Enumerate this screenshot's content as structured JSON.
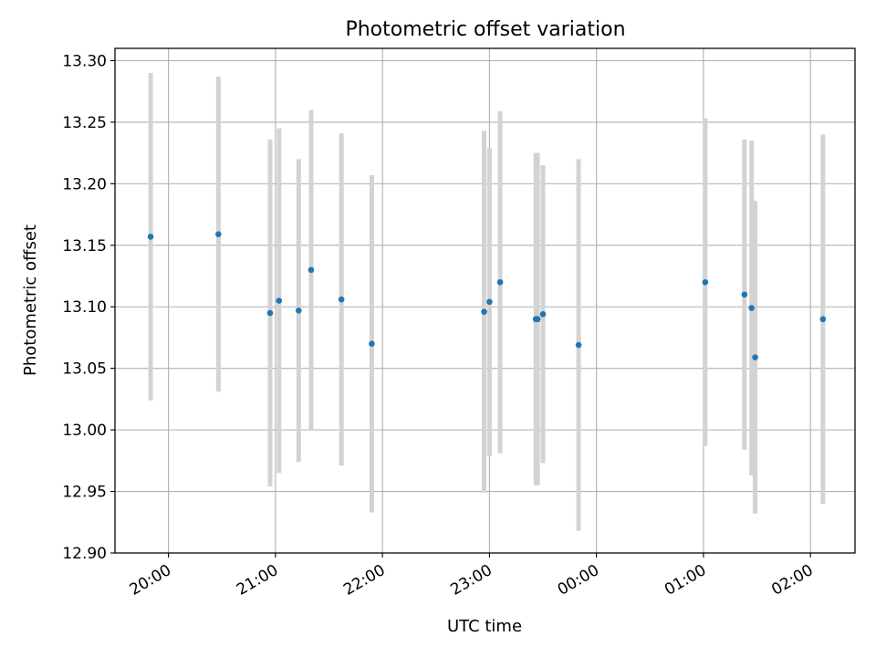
{
  "chart_data": {
    "type": "scatter",
    "title": "Photometric offset variation",
    "xlabel": "UTC time",
    "ylabel": "Photometric offset",
    "x_axis_kind": "time",
    "xlim": [
      "19:30",
      "02:25"
    ],
    "ylim": [
      12.9,
      13.31
    ],
    "grid": true,
    "legend": "none",
    "x_ticks": [
      "20:00",
      "21:00",
      "22:00",
      "23:00",
      "00:00",
      "01:00",
      "02:00"
    ],
    "y_ticks": [
      "12.90",
      "12.95",
      "13.00",
      "13.05",
      "13.10",
      "13.15",
      "13.20",
      "13.25",
      "13.30"
    ],
    "series": [
      {
        "color": "#1f77b4",
        "errorbar_color": "#d3d3d3",
        "points": [
          {
            "x": "19:50",
            "y": 13.157,
            "err": 0.133
          },
          {
            "x": "20:28",
            "y": 13.159,
            "err": 0.128
          },
          {
            "x": "20:57",
            "y": 13.095,
            "err": 0.141
          },
          {
            "x": "21:02",
            "y": 13.105,
            "err": 0.14
          },
          {
            "x": "21:13",
            "y": 13.097,
            "err": 0.123
          },
          {
            "x": "21:20",
            "y": 13.13,
            "err": 0.13
          },
          {
            "x": "21:37",
            "y": 13.106,
            "err": 0.135
          },
          {
            "x": "21:54",
            "y": 13.07,
            "err": 0.137
          },
          {
            "x": "22:57",
            "y": 13.096,
            "err": 0.147
          },
          {
            "x": "23:00",
            "y": 13.104,
            "err": 0.125
          },
          {
            "x": "23:06",
            "y": 13.12,
            "err": 0.139
          },
          {
            "x": "23:26",
            "y": 13.09,
            "err": 0.135
          },
          {
            "x": "23:27",
            "y": 13.09,
            "err": 0.135
          },
          {
            "x": "23:30",
            "y": 13.094,
            "err": 0.121
          },
          {
            "x": "23:50",
            "y": 13.069,
            "err": 0.151
          },
          {
            "x": "01:01",
            "y": 13.12,
            "err": 0.133
          },
          {
            "x": "01:23",
            "y": 13.11,
            "err": 0.126
          },
          {
            "x": "01:27",
            "y": 13.099,
            "err": 0.136
          },
          {
            "x": "01:29",
            "y": 13.059,
            "err": 0.127
          },
          {
            "x": "02:07",
            "y": 13.09,
            "err": 0.15
          }
        ]
      }
    ]
  }
}
